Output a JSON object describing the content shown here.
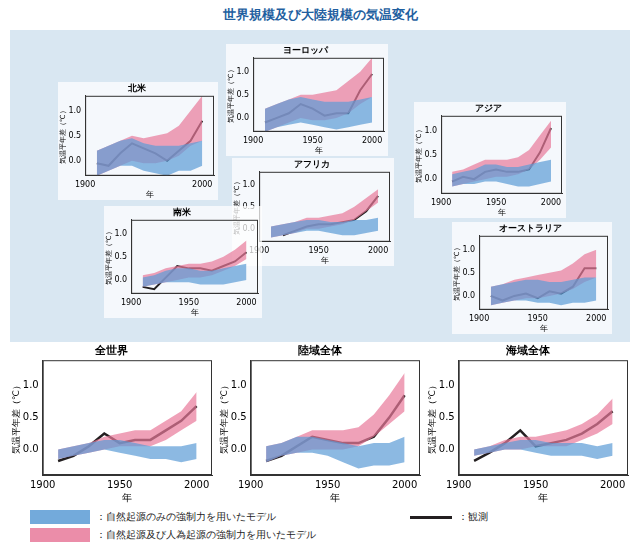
{
  "title": "世界規模及び大陸規模の気温変化",
  "chart_data": [
    {
      "type": "line",
      "title": "北米",
      "x_label": "年",
      "y_label": "気温平年差（℃）",
      "x": [
        1910,
        1920,
        1930,
        1940,
        1950,
        1960,
        1970,
        1980,
        1990,
        2000
      ],
      "xlim": [
        1900,
        2010
      ],
      "xticks": [
        1900,
        2000
      ],
      "ylim": [
        -0.3,
        1.3
      ],
      "yticks": [
        {
          "value": 0,
          "label": "0.0"
        },
        {
          "value": 0.5,
          "label": "0.5"
        },
        {
          "value": 1,
          "label": "1.0"
        }
      ],
      "grid": false,
      "series": [
        {
          "name": "：自然起源のみの強制力を用いたモデル",
          "type": "band",
          "color": "#5b9bd5",
          "lower": [
            -0.3,
            -0.2,
            -0.1,
            -0.1,
            -0.2,
            -0.25,
            -0.3,
            -0.2,
            -0.2,
            -0.1
          ],
          "upper": [
            0.2,
            0.3,
            0.4,
            0.45,
            0.35,
            0.3,
            0.3,
            0.3,
            0.35,
            0.4
          ]
        },
        {
          "name": "：自然起源及び人為起源の強制力を用いたモデル",
          "type": "band",
          "color": "#e8799a",
          "lower": [
            -0.3,
            -0.2,
            -0.1,
            0.0,
            -0.05,
            -0.05,
            0.0,
            0.1,
            0.3,
            0.4
          ],
          "upper": [
            0.2,
            0.3,
            0.4,
            0.5,
            0.45,
            0.5,
            0.55,
            0.7,
            1.0,
            1.3
          ]
        },
        {
          "name": "：観測",
          "type": "line",
          "color": "#231f20",
          "values": [
            -0.05,
            -0.1,
            0.15,
            0.35,
            0.25,
            0.15,
            0.0,
            0.2,
            0.4,
            0.8
          ]
        }
      ]
    },
    {
      "type": "line",
      "title": "ヨーロッパ",
      "x_label": "年",
      "y_label": "気温平年差（℃）",
      "x": [
        1910,
        1920,
        1930,
        1940,
        1950,
        1960,
        1970,
        1980,
        1990,
        2000
      ],
      "xlim": [
        1900,
        2010
      ],
      "xticks": [
        1900,
        1950,
        2000
      ],
      "ylim": [
        -0.3,
        1.3
      ],
      "yticks": [
        {
          "value": 0,
          "label": "0.0"
        },
        {
          "value": 0.5,
          "label": "0.5"
        },
        {
          "value": 1,
          "label": "1.0"
        }
      ],
      "grid": false,
      "series": [
        {
          "name": "：自然起源のみの強制力を用いたモデル",
          "type": "band",
          "color": "#5b9bd5",
          "lower": [
            -0.3,
            -0.2,
            -0.15,
            -0.1,
            -0.15,
            -0.2,
            -0.25,
            -0.2,
            -0.15,
            -0.1
          ],
          "upper": [
            0.2,
            0.3,
            0.4,
            0.45,
            0.4,
            0.35,
            0.35,
            0.35,
            0.4,
            0.45
          ]
        },
        {
          "name": "：自然起源及び人為起源の強制力を用いたモデル",
          "type": "band",
          "color": "#e8799a",
          "lower": [
            -0.3,
            -0.2,
            -0.1,
            0.0,
            -0.05,
            -0.05,
            0.0,
            0.1,
            0.3,
            0.45
          ],
          "upper": [
            0.2,
            0.3,
            0.4,
            0.5,
            0.5,
            0.55,
            0.6,
            0.8,
            1.0,
            1.3
          ]
        },
        {
          "name": "：観測",
          "type": "line",
          "color": "#231f20",
          "values": [
            -0.1,
            0.0,
            0.1,
            0.3,
            0.2,
            0.05,
            0.1,
            0.1,
            0.6,
            0.95
          ]
        }
      ]
    },
    {
      "type": "line",
      "title": "アジア",
      "x_label": "年",
      "y_label": "気温平年差（℃）",
      "x": [
        1910,
        1920,
        1930,
        1940,
        1950,
        1960,
        1970,
        1980,
        1990,
        2000
      ],
      "xlim": [
        1900,
        2010
      ],
      "xticks": [
        1900,
        1950,
        2000
      ],
      "ylim": [
        -0.3,
        1.3
      ],
      "yticks": [
        {
          "value": 0,
          "label": "0.0"
        },
        {
          "value": 0.5,
          "label": "0.5"
        },
        {
          "value": 1,
          "label": "1.0"
        }
      ],
      "grid": false,
      "series": [
        {
          "name": "：自然起源のみの強制力を用いたモデル",
          "type": "band",
          "color": "#5b9bd5",
          "lower": [
            -0.15,
            -0.1,
            -0.1,
            -0.05,
            -0.05,
            -0.1,
            -0.15,
            -0.15,
            -0.1,
            -0.05
          ],
          "upper": [
            0.1,
            0.15,
            0.2,
            0.3,
            0.3,
            0.25,
            0.25,
            0.3,
            0.35,
            0.4
          ]
        },
        {
          "name": "：自然起源及び人為起源の強制力を用いたモデル",
          "type": "band",
          "color": "#e8799a",
          "lower": [
            -0.15,
            -0.1,
            -0.05,
            0.0,
            0.05,
            0.05,
            0.1,
            0.2,
            0.4,
            0.65
          ],
          "upper": [
            0.15,
            0.2,
            0.3,
            0.4,
            0.4,
            0.4,
            0.45,
            0.6,
            0.9,
            1.2
          ]
        },
        {
          "name": "：観測",
          "type": "line",
          "color": "#231f20",
          "values": [
            -0.05,
            0.05,
            0.0,
            0.15,
            0.2,
            0.15,
            0.15,
            0.2,
            0.55,
            1.05
          ]
        }
      ]
    },
    {
      "type": "line",
      "title": "アフリカ",
      "x_label": "年",
      "y_label": "気温平年差（℃）",
      "x": [
        1910,
        1920,
        1930,
        1940,
        1950,
        1960,
        1970,
        1980,
        1990,
        2000
      ],
      "xlim": [
        1900,
        2010
      ],
      "xticks": [
        1900,
        1950,
        2000
      ],
      "ylim": [
        -0.3,
        1.3
      ],
      "yticks": [
        {
          "value": 0,
          "label": "0.0"
        },
        {
          "value": 0.5,
          "label": "0.5"
        },
        {
          "value": 1,
          "label": "1.0"
        }
      ],
      "grid": false,
      "series": [
        {
          "name": "：自然起源のみの強制力を用いたモデル",
          "type": "band",
          "color": "#5b9bd5",
          "lower": [
            -0.2,
            -0.15,
            -0.1,
            -0.05,
            -0.05,
            -0.1,
            -0.15,
            -0.15,
            -0.1,
            -0.05
          ],
          "upper": [
            0.05,
            0.1,
            0.15,
            0.2,
            0.2,
            0.15,
            0.15,
            0.2,
            0.2,
            0.25
          ]
        },
        {
          "name": "：自然起源及び人為起源の強制力を用いたモデル",
          "type": "band",
          "color": "#e8799a",
          "lower": [
            -0.2,
            -0.15,
            -0.1,
            0.0,
            0.0,
            0.05,
            0.1,
            0.2,
            0.4,
            0.6
          ],
          "upper": [
            0.05,
            0.1,
            0.15,
            0.25,
            0.25,
            0.3,
            0.35,
            0.5,
            0.7,
            0.9
          ]
        },
        {
          "name": "：観測",
          "type": "line",
          "color": "#231f20",
          "values": [
            null,
            -0.15,
            -0.05,
            0.05,
            0.1,
            0.1,
            0.15,
            0.2,
            0.4,
            0.75
          ]
        }
      ]
    },
    {
      "type": "line",
      "title": "南米",
      "x_label": "年",
      "y_label": "気温平年差（℃）",
      "x": [
        1910,
        1920,
        1930,
        1940,
        1950,
        1960,
        1970,
        1980,
        1990,
        2000
      ],
      "xlim": [
        1900,
        2010
      ],
      "xticks": [
        1900,
        1950,
        2000
      ],
      "ylim": [
        -0.3,
        1.3
      ],
      "yticks": [
        {
          "value": 0,
          "label": "0.0"
        },
        {
          "value": 0.5,
          "label": "0.5"
        },
        {
          "value": 1,
          "label": "1.0"
        }
      ],
      "grid": false,
      "series": [
        {
          "name": "：自然起源のみの強制力を用いたモデル",
          "type": "band",
          "color": "#5b9bd5",
          "lower": [
            -0.15,
            -0.1,
            -0.05,
            -0.05,
            -0.05,
            -0.1,
            -0.1,
            -0.1,
            -0.05,
            0.0
          ],
          "upper": [
            0.05,
            0.1,
            0.2,
            0.25,
            0.25,
            0.2,
            0.2,
            0.25,
            0.3,
            0.35
          ]
        },
        {
          "name": "：自然起源及び人為起源の強制力を用いたモデル",
          "type": "band",
          "color": "#e8799a",
          "lower": [
            -0.15,
            -0.1,
            -0.05,
            0.0,
            0.05,
            0.05,
            0.1,
            0.2,
            0.3,
            0.45
          ],
          "upper": [
            0.1,
            0.15,
            0.25,
            0.3,
            0.35,
            0.35,
            0.4,
            0.5,
            0.65,
            0.85
          ]
        },
        {
          "name": "：観測",
          "type": "line",
          "color": "#231f20",
          "values": [
            -0.15,
            -0.2,
            0.05,
            0.3,
            0.25,
            0.25,
            0.2,
            0.3,
            0.4,
            0.6
          ]
        }
      ]
    },
    {
      "type": "line",
      "title": "オーストラリア",
      "x_label": "年",
      "y_label": "気温平年差（℃）",
      "x": [
        1910,
        1920,
        1930,
        1940,
        1950,
        1960,
        1970,
        1980,
        1990,
        2000
      ],
      "xlim": [
        1900,
        2010
      ],
      "xticks": [
        1900,
        1950,
        2000
      ],
      "ylim": [
        -0.3,
        1.3
      ],
      "yticks": [
        {
          "value": 0,
          "label": "0.0"
        },
        {
          "value": 0.5,
          "label": "0.5"
        },
        {
          "value": 1,
          "label": "1.0"
        }
      ],
      "grid": false,
      "series": [
        {
          "name": "：自然起源のみの強制力を用いたモデル",
          "type": "band",
          "color": "#5b9bd5",
          "lower": [
            -0.2,
            -0.15,
            -0.1,
            -0.1,
            -0.15,
            -0.15,
            -0.2,
            -0.15,
            -0.15,
            -0.1
          ],
          "upper": [
            0.2,
            0.25,
            0.3,
            0.35,
            0.35,
            0.3,
            0.3,
            0.35,
            0.4,
            0.4
          ]
        },
        {
          "name": "：自然起源及び人為起源の強制力を用いたモデル",
          "type": "band",
          "color": "#e8799a",
          "lower": [
            -0.2,
            -0.15,
            -0.1,
            -0.05,
            -0.05,
            0.0,
            0.05,
            0.15,
            0.3,
            0.4
          ],
          "upper": [
            0.2,
            0.25,
            0.35,
            0.4,
            0.45,
            0.5,
            0.55,
            0.7,
            0.9,
            1.0
          ]
        },
        {
          "name": "：観測",
          "type": "line",
          "color": "#231f20",
          "values": [
            0.0,
            -0.1,
            0.0,
            0.05,
            -0.05,
            0.1,
            0.05,
            0.2,
            0.6,
            0.6
          ]
        }
      ]
    },
    {
      "type": "line",
      "title": "全世界",
      "x_label": "年",
      "y_label": "気温平年差（℃）",
      "x": [
        1910,
        1920,
        1930,
        1940,
        1950,
        1960,
        1970,
        1980,
        1990,
        2000
      ],
      "xlim": [
        1900,
        2010
      ],
      "xticks": [
        1900,
        1950,
        2000
      ],
      "ylim": [
        -0.4,
        1.4
      ],
      "yticks": [
        {
          "value": 0,
          "label": "0.0"
        },
        {
          "value": 0.5,
          "label": "0.5"
        },
        {
          "value": 1,
          "label": "1.0"
        }
      ],
      "grid": false,
      "series": [
        {
          "name": "：自然起源のみの強制力を用いたモデル",
          "type": "band",
          "color": "#5b9bd5",
          "lower": [
            -0.15,
            -0.1,
            -0.05,
            0.0,
            -0.05,
            -0.1,
            -0.15,
            -0.15,
            -0.2,
            -0.15
          ],
          "upper": [
            0.0,
            0.05,
            0.1,
            0.15,
            0.15,
            0.1,
            0.05,
            0.05,
            0.05,
            0.1
          ]
        },
        {
          "name": "：自然起源及び人為起源の強制力を用いたモデル",
          "type": "band",
          "color": "#e8799a",
          "lower": [
            -0.15,
            -0.1,
            -0.05,
            0.0,
            0.05,
            0.05,
            0.05,
            0.15,
            0.3,
            0.45
          ],
          "upper": [
            0.0,
            0.05,
            0.1,
            0.2,
            0.25,
            0.3,
            0.3,
            0.45,
            0.6,
            0.9
          ]
        },
        {
          "name": "：観測",
          "type": "line",
          "color": "#231f20",
          "values": [
            -0.18,
            -0.1,
            0.05,
            0.25,
            0.1,
            0.15,
            0.15,
            0.3,
            0.45,
            0.68
          ]
        }
      ]
    },
    {
      "type": "line",
      "title": "陸域全体",
      "x_label": "年",
      "y_label": "気温平年差（℃）",
      "x": [
        1910,
        1920,
        1930,
        1940,
        1950,
        1960,
        1970,
        1980,
        1990,
        2000
      ],
      "xlim": [
        1900,
        2010
      ],
      "xticks": [
        1900,
        1950,
        2000
      ],
      "ylim": [
        -0.4,
        1.4
      ],
      "yticks": [
        {
          "value": 0,
          "label": "0.0"
        },
        {
          "value": 0.5,
          "label": "0.5"
        },
        {
          "value": 1,
          "label": "1.0"
        }
      ],
      "grid": false,
      "series": [
        {
          "name": "：自然起源のみの強制力を用いたモデル",
          "type": "band",
          "color": "#5b9bd5",
          "lower": [
            -0.2,
            -0.1,
            -0.05,
            -0.05,
            -0.1,
            -0.2,
            -0.3,
            -0.25,
            -0.25,
            -0.2
          ],
          "upper": [
            0.05,
            0.1,
            0.2,
            0.2,
            0.15,
            0.1,
            0.05,
            0.1,
            0.1,
            0.2
          ]
        },
        {
          "name": "：自然起源及び人為起源の強制力を用いたモデル",
          "type": "band",
          "color": "#e8799a",
          "lower": [
            -0.2,
            -0.1,
            -0.05,
            0.0,
            0.0,
            0.0,
            0.05,
            0.2,
            0.4,
            0.6
          ],
          "upper": [
            0.05,
            0.1,
            0.2,
            0.3,
            0.3,
            0.3,
            0.35,
            0.55,
            0.85,
            1.2
          ]
        },
        {
          "name": "：観測",
          "type": "line",
          "color": "#231f20",
          "values": [
            -0.18,
            -0.1,
            0.05,
            0.2,
            0.15,
            0.1,
            0.1,
            0.2,
            0.5,
            0.85
          ]
        }
      ]
    },
    {
      "type": "line",
      "title": "海域全体",
      "x_label": "年",
      "y_label": "気温平年差（℃）",
      "x": [
        1910,
        1920,
        1930,
        1940,
        1950,
        1960,
        1970,
        1980,
        1990,
        2000
      ],
      "xlim": [
        1900,
        2010
      ],
      "xticks": [
        1900,
        1950,
        2000
      ],
      "ylim": [
        -0.4,
        1.4
      ],
      "yticks": [
        {
          "value": 0,
          "label": "0.0"
        },
        {
          "value": 0.5,
          "label": "0.5"
        },
        {
          "value": 1,
          "label": "1.0"
        }
      ],
      "grid": false,
      "series": [
        {
          "name": "：自然起源のみの強制力を用いたモデル",
          "type": "band",
          "color": "#5b9bd5",
          "lower": [
            -0.1,
            -0.05,
            0.0,
            0.0,
            -0.05,
            -0.1,
            -0.1,
            -0.1,
            -0.15,
            -0.1
          ],
          "upper": [
            0.0,
            0.05,
            0.1,
            0.15,
            0.15,
            0.1,
            0.1,
            0.1,
            0.05,
            0.1
          ]
        },
        {
          "name": "：自然起源及び人為起源の強制力を用いたモデル",
          "type": "band",
          "color": "#e8799a",
          "lower": [
            -0.1,
            -0.05,
            0.0,
            0.0,
            0.05,
            0.05,
            0.05,
            0.15,
            0.25,
            0.4
          ],
          "upper": [
            0.0,
            0.05,
            0.15,
            0.2,
            0.2,
            0.25,
            0.3,
            0.4,
            0.55,
            0.8
          ]
        },
        {
          "name": "：観測",
          "type": "line",
          "color": "#231f20",
          "values": [
            -0.18,
            -0.05,
            0.1,
            0.3,
            0.05,
            0.1,
            0.15,
            0.25,
            0.4,
            0.6
          ]
        }
      ]
    }
  ]
}
